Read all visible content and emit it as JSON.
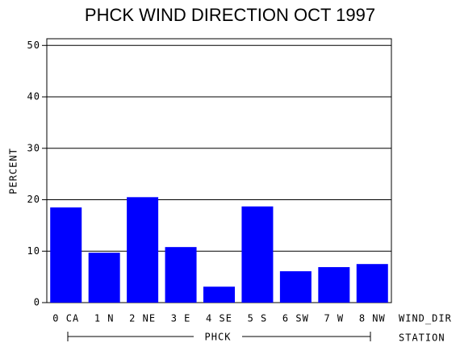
{
  "chart_data": {
    "type": "bar",
    "title": "PHCK WIND DIRECTION OCT 1997",
    "ylabel": "PERCENT",
    "xlabel": "WIND_DIR",
    "group_label": "PHCK",
    "group_axis_label": "STATION",
    "categories": [
      "0 CA",
      "1 N",
      "2 NE",
      "3 E",
      "4 SE",
      "5 S",
      "6 SW",
      "7 W",
      "8 NW"
    ],
    "values": [
      18.5,
      9.7,
      20.5,
      10.8,
      3.1,
      18.7,
      6.1,
      6.9,
      7.5
    ],
    "color": "#0000ff",
    "ylim": [
      0,
      51.3
    ],
    "yticks": [
      0,
      10,
      20,
      30,
      40,
      50
    ],
    "grid": true
  }
}
